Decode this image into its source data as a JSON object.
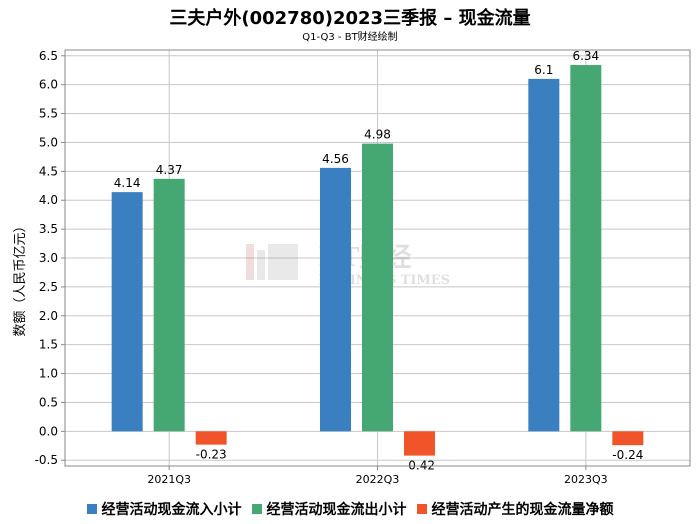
{
  "chart_data": {
    "type": "bar",
    "title": "三夫户外(002780)2023三季报 – 现金流量",
    "subtitle": "Q1-Q3 - BT财经绘制",
    "ylabel": "数额（人民币亿元）",
    "xlabel": "",
    "categories": [
      "2021Q3",
      "2022Q3",
      "2023Q3"
    ],
    "ylim": [
      -0.6,
      6.6
    ],
    "yticks": [
      -0.5,
      0.0,
      0.5,
      1.0,
      1.5,
      2.0,
      2.5,
      3.0,
      3.5,
      4.0,
      4.5,
      5.0,
      5.5,
      6.0,
      6.5
    ],
    "grid": true,
    "legend_position": "bottom",
    "series": [
      {
        "name": "经营活动现金流入小计",
        "values": [
          4.14,
          4.56,
          6.1
        ],
        "labels": [
          "4.14",
          "4.56",
          "6.1"
        ],
        "color": "#3a7fc0"
      },
      {
        "name": "经营活动现金流出小计",
        "values": [
          4.37,
          4.98,
          6.34
        ],
        "labels": [
          "4.37",
          "4.98",
          "6.34"
        ],
        "color": "#45a872"
      },
      {
        "name": "经营活动产生的现金流量净额",
        "values": [
          -0.23,
          -0.42,
          -0.24
        ],
        "labels": [
          "-0.23",
          "-0.42",
          "-0.24"
        ],
        "color": "#f05428"
      }
    ]
  },
  "watermark": {
    "line1": "BT财经",
    "line2": "BUSINESS TIMES"
  }
}
